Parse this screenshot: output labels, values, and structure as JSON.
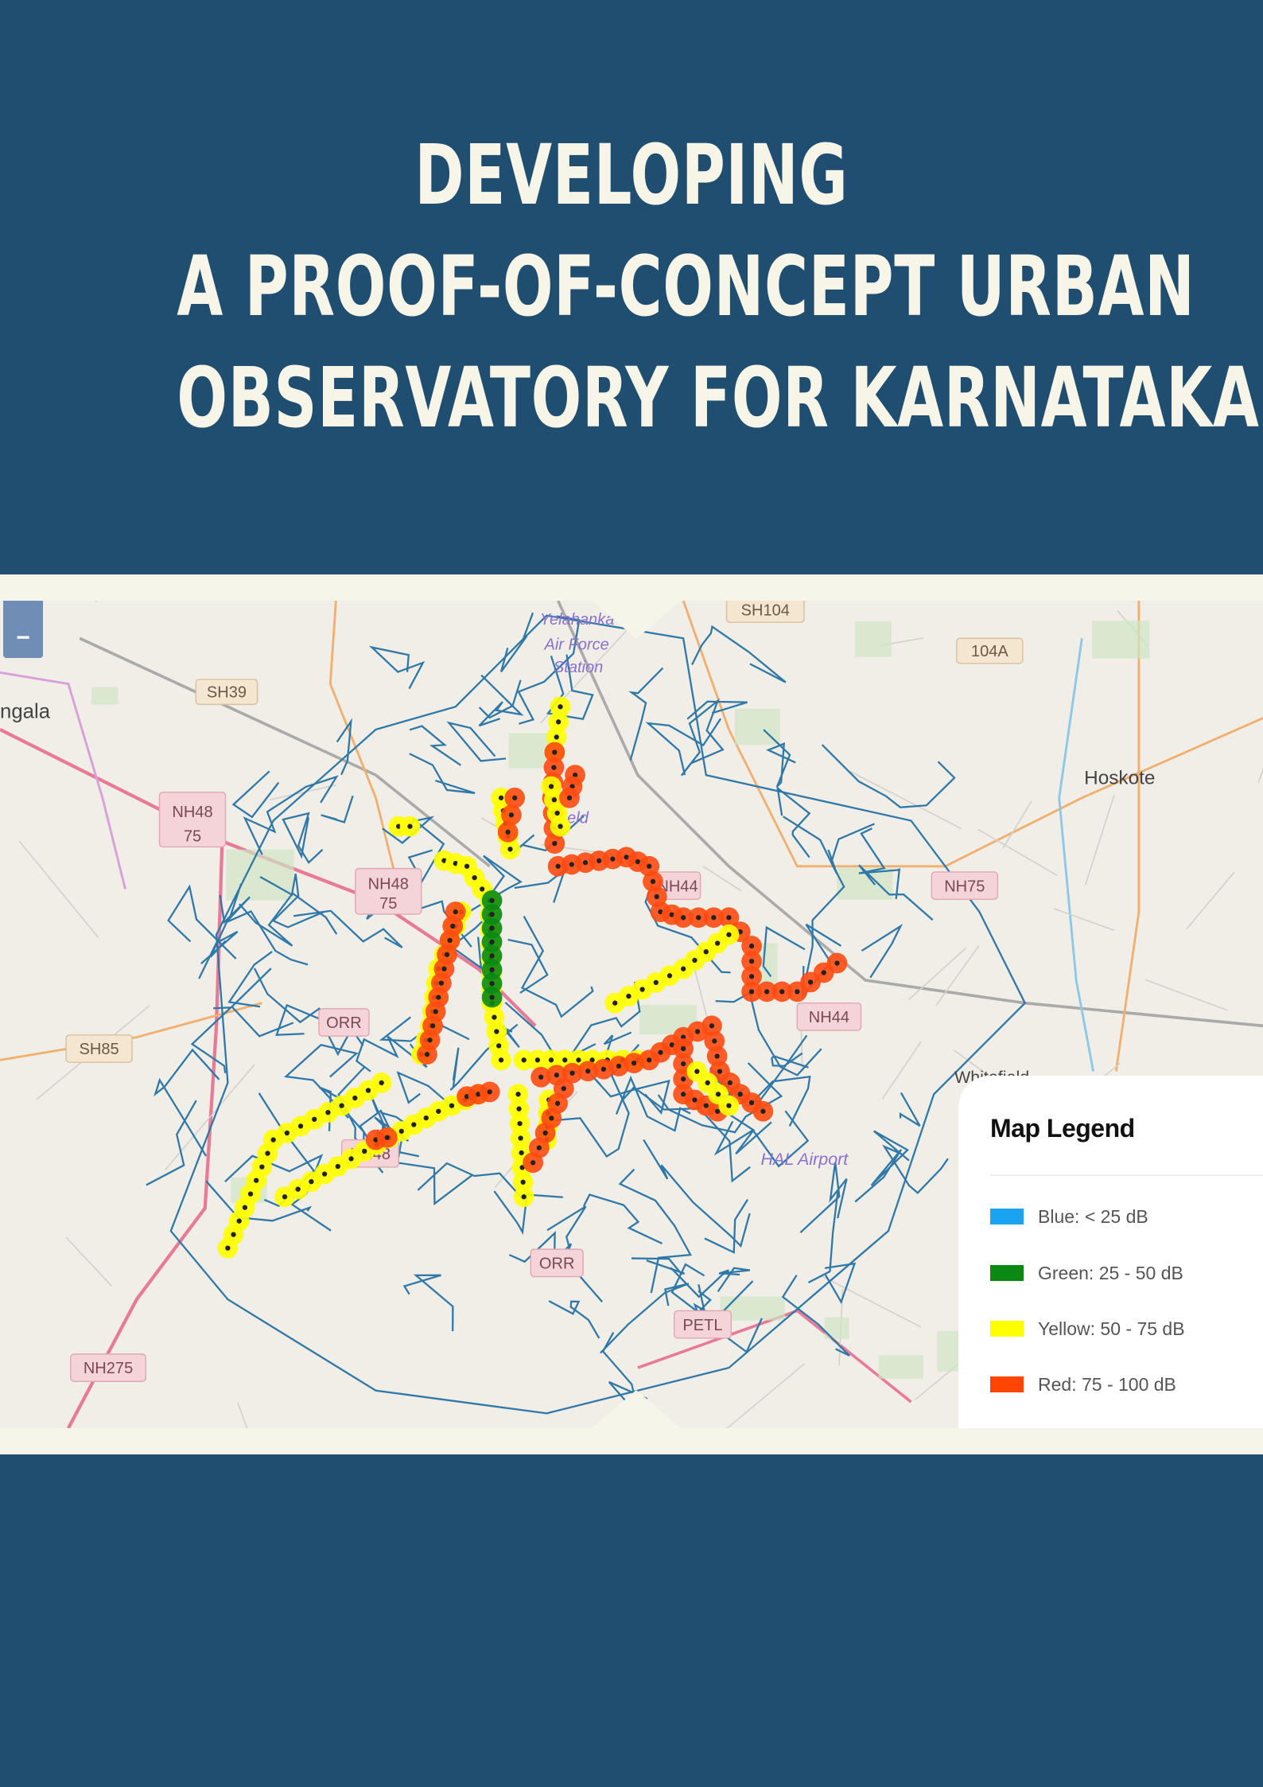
{
  "title": {
    "lines": [
      "DEVELOPING",
      "A PROOF-OF-CONCEPT URBAN",
      "OBSERVATORY FOR KARNATAKA"
    ]
  },
  "map": {
    "zoom_out_label": "−",
    "labels": {
      "sh104": "SH104",
      "r104a": "104A",
      "hoskote": "Hoskote",
      "sh39": "SH39",
      "ngala": "ngala",
      "nh48a": "NH48",
      "nh48a2": "75",
      "nh48b": "NH48",
      "nh48b2": "75",
      "nh75": "NH75",
      "nh44": "NH44",
      "nh44b": "NH44",
      "orr1": "ORR",
      "sh85": "SH85",
      "nh275": "NH275",
      "nh48c": "NH48",
      "orr2": "ORR",
      "petl": "PETL",
      "hal": "HAL Airport",
      "yel1": "Yelahanka",
      "yel2": "Air Force",
      "yel3": "Station",
      "field": "eld",
      "whitefield": "Whitefield"
    }
  },
  "legend": {
    "title": "Map Legend",
    "items": [
      {
        "label": "Blue: < 25 dB",
        "color": "#1aa3f0"
      },
      {
        "label": "Green: 25 - 50 dB",
        "color": "#0a8a14"
      },
      {
        "label": "Yellow: 50 - 75 dB",
        "color": "#ffff00"
      },
      {
        "label": "Red: 75 - 100 dB",
        "color": "#ff4500"
      }
    ]
  }
}
